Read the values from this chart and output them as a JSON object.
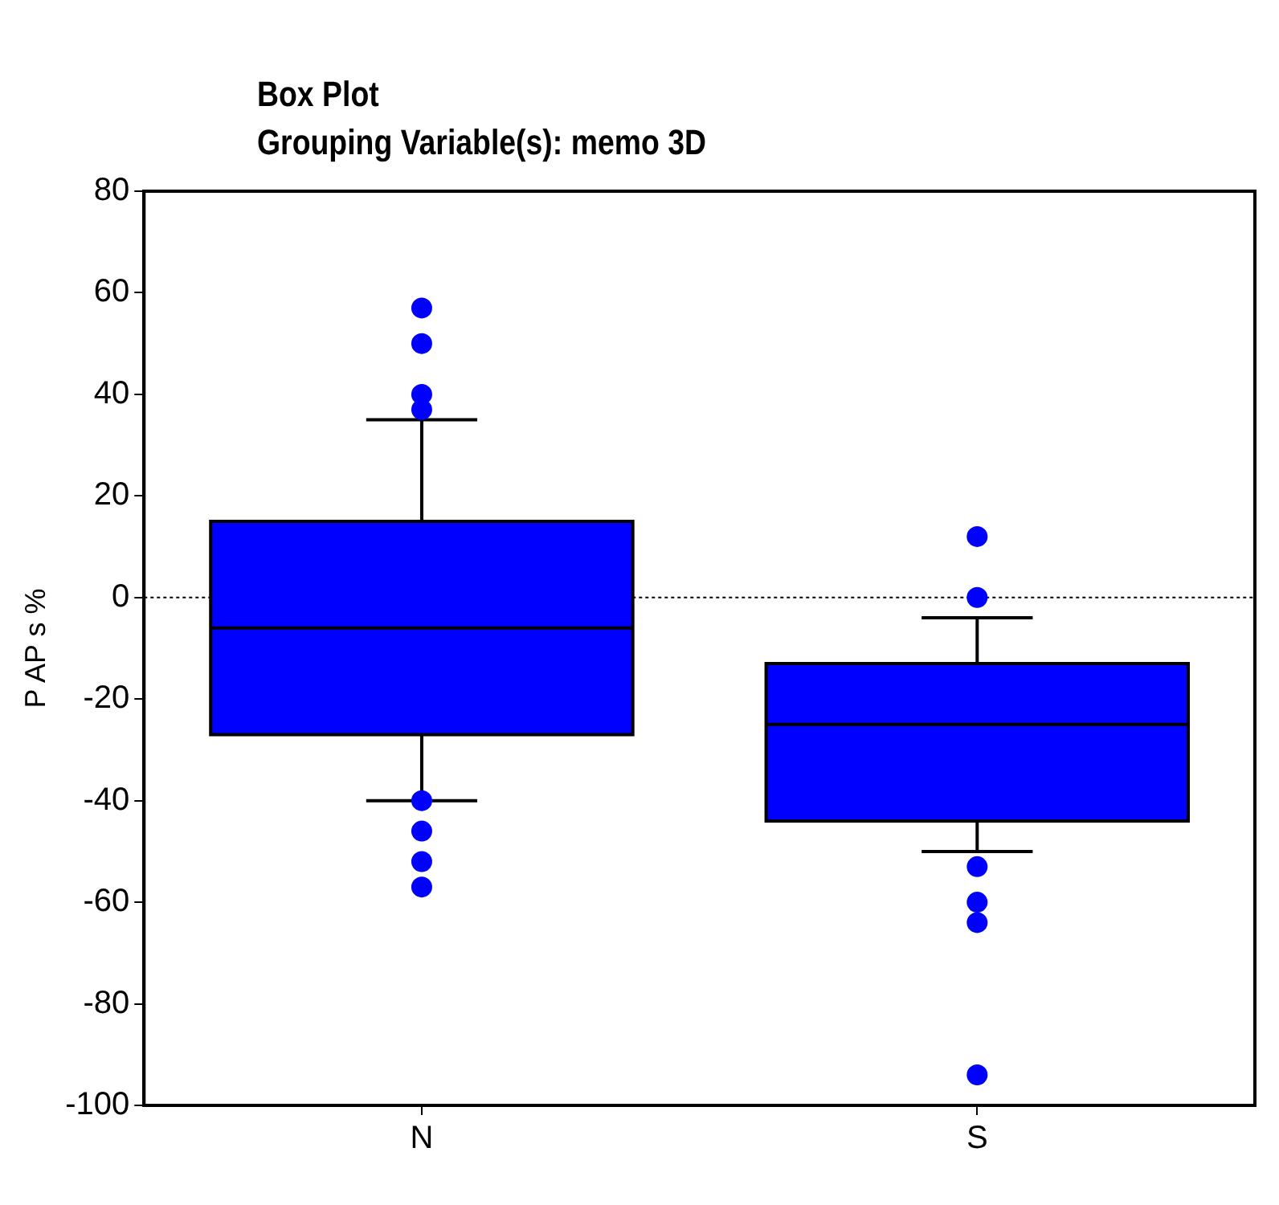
{
  "chart_data": {
    "type": "box",
    "title": "Box Plot",
    "subtitle": "Grouping Variable(s): memo 3D",
    "ylabel": "P AP s %",
    "categories": [
      "N",
      "S"
    ],
    "color": "#0000ff",
    "boxes": [
      {
        "low": -40,
        "q1": -27,
        "median": -6,
        "q3": 15,
        "high": 35,
        "outliers": [
          57,
          50,
          40,
          37,
          -40,
          -46,
          -52,
          -57
        ]
      },
      {
        "low": -50,
        "q1": -44,
        "median": -25,
        "q3": -13,
        "high": -4,
        "outliers": [
          12,
          0,
          -53,
          -60,
          -64,
          -94
        ]
      }
    ],
    "ylim": [
      -100,
      80
    ],
    "yticks": [
      -100,
      -80,
      -60,
      -40,
      -20,
      0,
      20,
      40,
      60,
      80
    ],
    "ref_lines": [
      {
        "axis": "y",
        "value": 0,
        "line_style": "dotted"
      }
    ]
  }
}
